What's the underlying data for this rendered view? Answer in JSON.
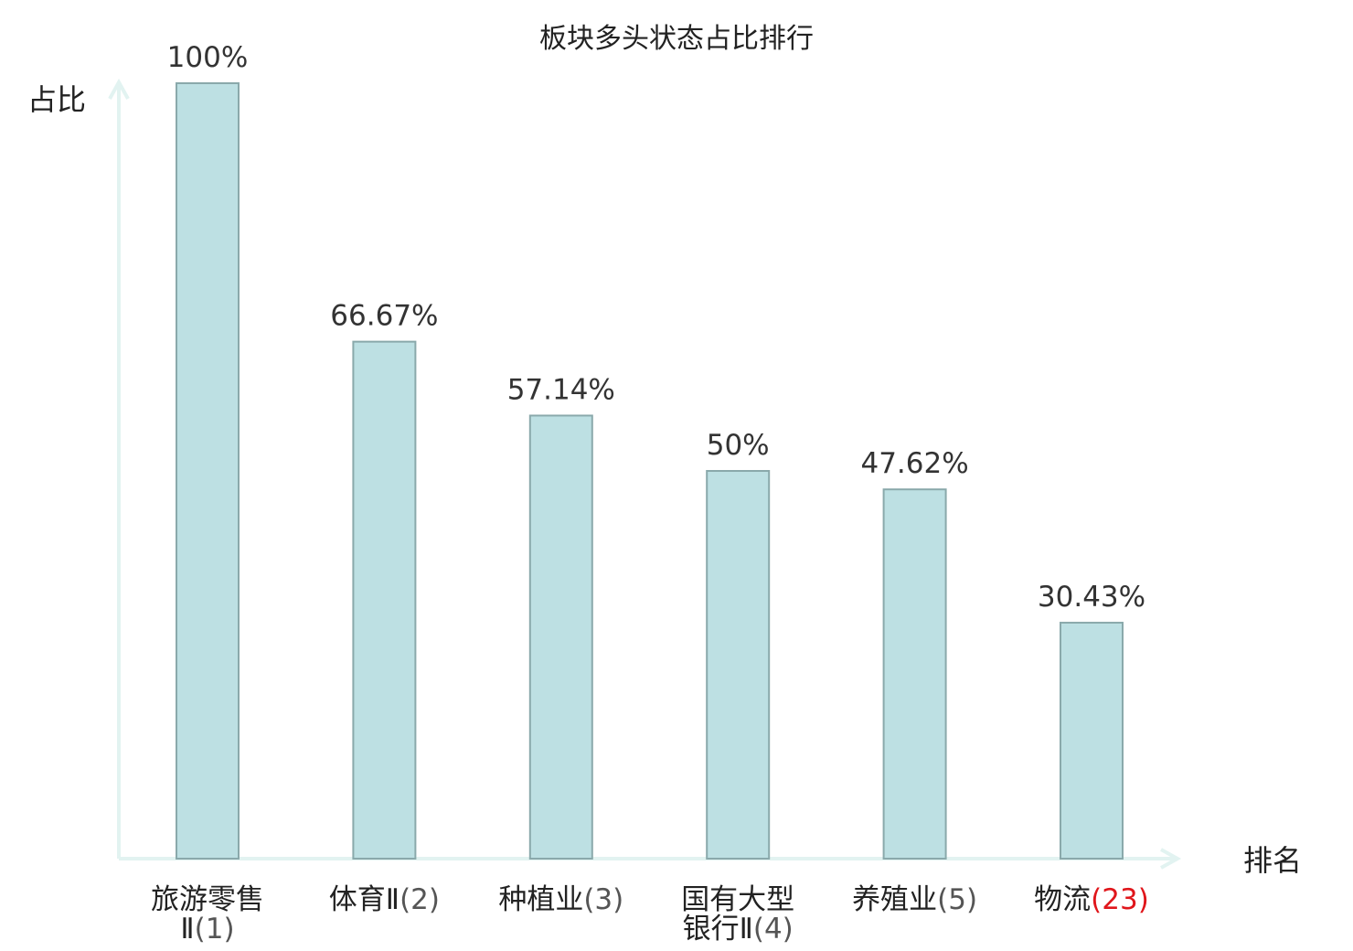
{
  "chart_data": {
    "type": "bar",
    "title": "板块多头状态占比排行",
    "ylabel": "占比",
    "xlabel": "排名",
    "ylim": [
      0,
      100
    ],
    "grid": false,
    "categories": [
      {
        "name_lines": [
          "旅游零售",
          "Ⅱ"
        ],
        "rank": "(1)",
        "highlight": false
      },
      {
        "name_lines": [
          "体育Ⅱ"
        ],
        "rank": "(2)",
        "highlight": false
      },
      {
        "name_lines": [
          "种植业"
        ],
        "rank": "(3)",
        "highlight": false
      },
      {
        "name_lines": [
          "国有大型",
          "银行Ⅱ"
        ],
        "rank": "(4)",
        "highlight": false
      },
      {
        "name_lines": [
          "养殖业"
        ],
        "rank": "(5)",
        "highlight": false
      },
      {
        "name_lines": [
          "物流"
        ],
        "rank": "(23)",
        "highlight": true
      }
    ],
    "values": [
      100,
      66.67,
      57.14,
      50,
      47.62,
      30.43
    ],
    "value_labels": [
      "100%",
      "66.67%",
      "57.14%",
      "50%",
      "47.62%",
      "30.43%"
    ]
  },
  "colors": {
    "bar_fill": "#bde0e3",
    "bar_stroke": "#8aa9ab",
    "axis": "#e2f3f1",
    "highlight_text": "#e0161b",
    "text": "#222222"
  }
}
